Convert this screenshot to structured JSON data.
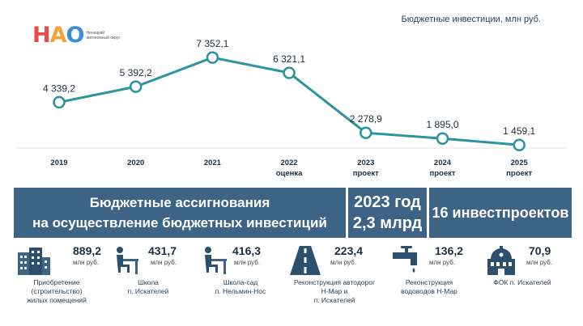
{
  "logo": {
    "letters": "НАО",
    "subtitle": "Ненецкий автономный округ"
  },
  "chart_data": {
    "type": "line",
    "title": "Бюджетные инвестиции, млн руб.",
    "categories": [
      "2019",
      "2020",
      "2021",
      "2022",
      "2023",
      "2024",
      "2025"
    ],
    "category_sublabels": [
      "",
      "",
      "",
      "оценка",
      "проект",
      "проект",
      "проект"
    ],
    "series": [
      {
        "values": [
          4339.2,
          5392.2,
          7352.1,
          6321.1,
          2278.9,
          1895.0,
          1459.1
        ]
      }
    ],
    "data_labels": [
      "4 339,2",
      "5 392,2",
      "7 352,1",
      "6 321,1",
      "2 278,9",
      "1 895,0",
      "1 459,1"
    ],
    "ylim": [
      0,
      8000
    ],
    "grid": false,
    "line_color": "#2b94a0"
  },
  "banner": {
    "title_line1": "Бюджетные ассигнования",
    "title_line2": "на осуществление бюджетных инвестиций",
    "year": "2023 год",
    "amount": "2,3 млрд",
    "projects": "16 инвестпроектов"
  },
  "projects": [
    {
      "icon": "buildings-icon",
      "value": "889,2",
      "unit": "млн руб.",
      "label": "Приобретение\n(строительство)\nжилых помещений"
    },
    {
      "icon": "school-desk-icon",
      "value": "431,7",
      "unit": "млн руб.",
      "label": "Школа\nп. Искателей"
    },
    {
      "icon": "school-desk-icon",
      "value": "416,3",
      "unit": "млн руб.",
      "label": "Школа-сад\nп. Нельмин-Нос"
    },
    {
      "icon": "road-icon",
      "value": "223,4",
      "unit": "млн руб.",
      "label": "Реконструкция автодорог\nН-Мар и\nп. Искателей"
    },
    {
      "icon": "water-tap-icon",
      "value": "136,2",
      "unit": "млн руб.",
      "label": "Реконструкция\nводоводов Н-Мар"
    },
    {
      "icon": "sports-complex-icon",
      "value": "70,9",
      "unit": "млн руб.",
      "label": "ФОК п. Искателей"
    }
  ]
}
